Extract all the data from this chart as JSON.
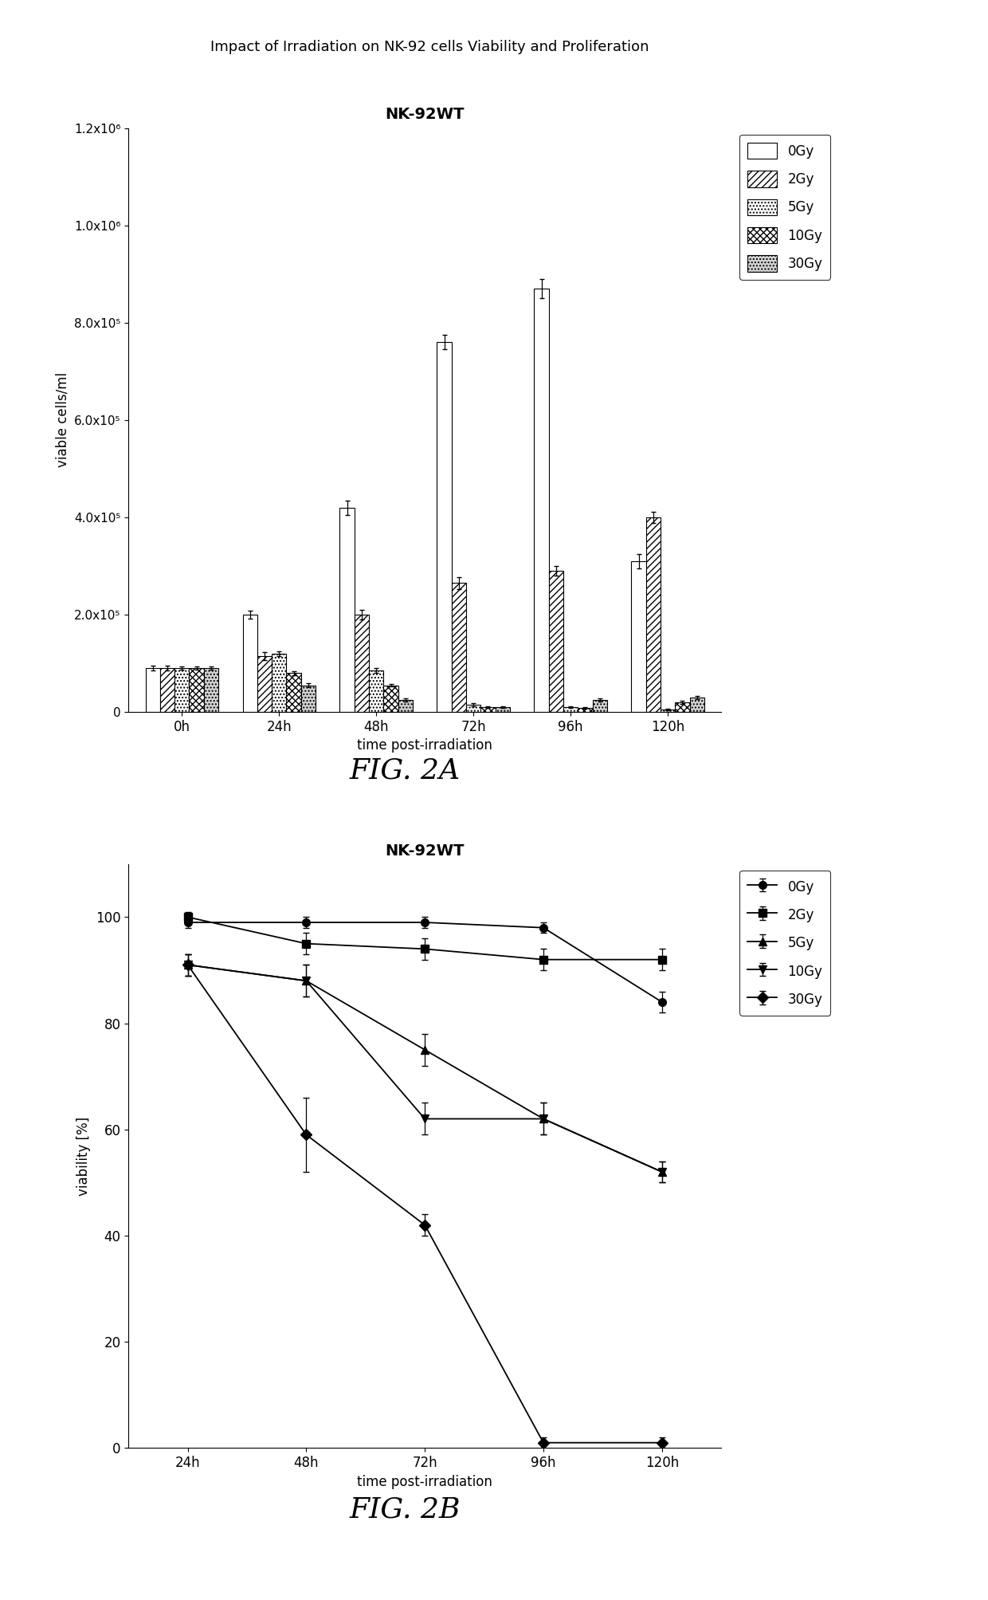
{
  "fig2a": {
    "title": "NK-92WT",
    "super_title": "Impact of Irradiation on NK-92 cells Viability and Proliferation",
    "xlabel": "time post-irradiation",
    "ylabel": "viable cells/ml",
    "time_points": [
      "0h",
      "24h",
      "48h",
      "72h",
      "96h",
      "120h"
    ],
    "bar_data": {
      "0Gy": [
        90000,
        200000,
        420000,
        760000,
        870000,
        310000
      ],
      "2Gy": [
        90000,
        115000,
        200000,
        265000,
        290000,
        400000
      ],
      "5Gy": [
        90000,
        120000,
        85000,
        15000,
        10000,
        5000
      ],
      "10Gy": [
        90000,
        80000,
        55000,
        10000,
        8000,
        20000
      ],
      "30Gy": [
        90000,
        55000,
        25000,
        10000,
        25000,
        30000
      ]
    },
    "bar_errors": {
      "0Gy": [
        5000,
        8000,
        15000,
        15000,
        20000,
        15000
      ],
      "2Gy": [
        5000,
        8000,
        10000,
        12000,
        10000,
        12000
      ],
      "5Gy": [
        3000,
        5000,
        5000,
        3000,
        2000,
        2000
      ],
      "10Gy": [
        3000,
        4000,
        3000,
        2000,
        2000,
        3000
      ],
      "30Gy": [
        3000,
        4000,
        3000,
        2000,
        3000,
        3000
      ]
    },
    "ylim": [
      0,
      1200000
    ],
    "yticks": [
      0,
      200000,
      400000,
      600000,
      800000,
      1000000,
      1200000
    ],
    "ytick_labels": [
      "0",
      "2.0x10⁵",
      "4.0x10⁵",
      "6.0x10⁵",
      "8.0x10⁵",
      "1.0x10⁶",
      "1.2x10⁶"
    ],
    "legend_labels": [
      "0Gy",
      "2Gy",
      "5Gy",
      "10Gy",
      "30Gy"
    ],
    "face_colors": [
      "white",
      "white",
      "white",
      "white",
      "lightgray"
    ],
    "hatch_patterns": [
      "",
      "////",
      "....",
      "xxxx",
      "...."
    ],
    "fig_label": "FIG. 2A"
  },
  "fig2b": {
    "title": "NK-92WT",
    "xlabel": "time post-irradiation",
    "ylabel": "viability [%]",
    "time_points": [
      "24h",
      "48h",
      "72h",
      "96h",
      "120h"
    ],
    "line_data": {
      "0Gy": [
        99,
        99,
        99,
        98,
        84
      ],
      "2Gy": [
        100,
        95,
        94,
        92,
        92
      ],
      "5Gy": [
        91,
        88,
        75,
        62,
        52
      ],
      "10Gy": [
        91,
        88,
        62,
        62,
        52
      ],
      "30Gy": [
        91,
        59,
        42,
        1,
        1
      ]
    },
    "line_errors": {
      "0Gy": [
        1,
        1,
        1,
        1,
        2
      ],
      "2Gy": [
        1,
        2,
        2,
        2,
        2
      ],
      "5Gy": [
        2,
        3,
        3,
        3,
        2
      ],
      "10Gy": [
        2,
        3,
        3,
        3,
        2
      ],
      "30Gy": [
        2,
        7,
        2,
        1,
        1
      ]
    },
    "ylim": [
      0,
      110
    ],
    "yticks": [
      0,
      20,
      40,
      60,
      80,
      100
    ],
    "legend_labels": [
      "0Gy",
      "2Gy",
      "5Gy",
      "10Gy",
      "30Gy"
    ],
    "markers": [
      "o",
      "s",
      "^",
      "v",
      "D"
    ],
    "fig_label": "FIG. 2B"
  },
  "background_color": "#ffffff",
  "text_color": "#000000"
}
